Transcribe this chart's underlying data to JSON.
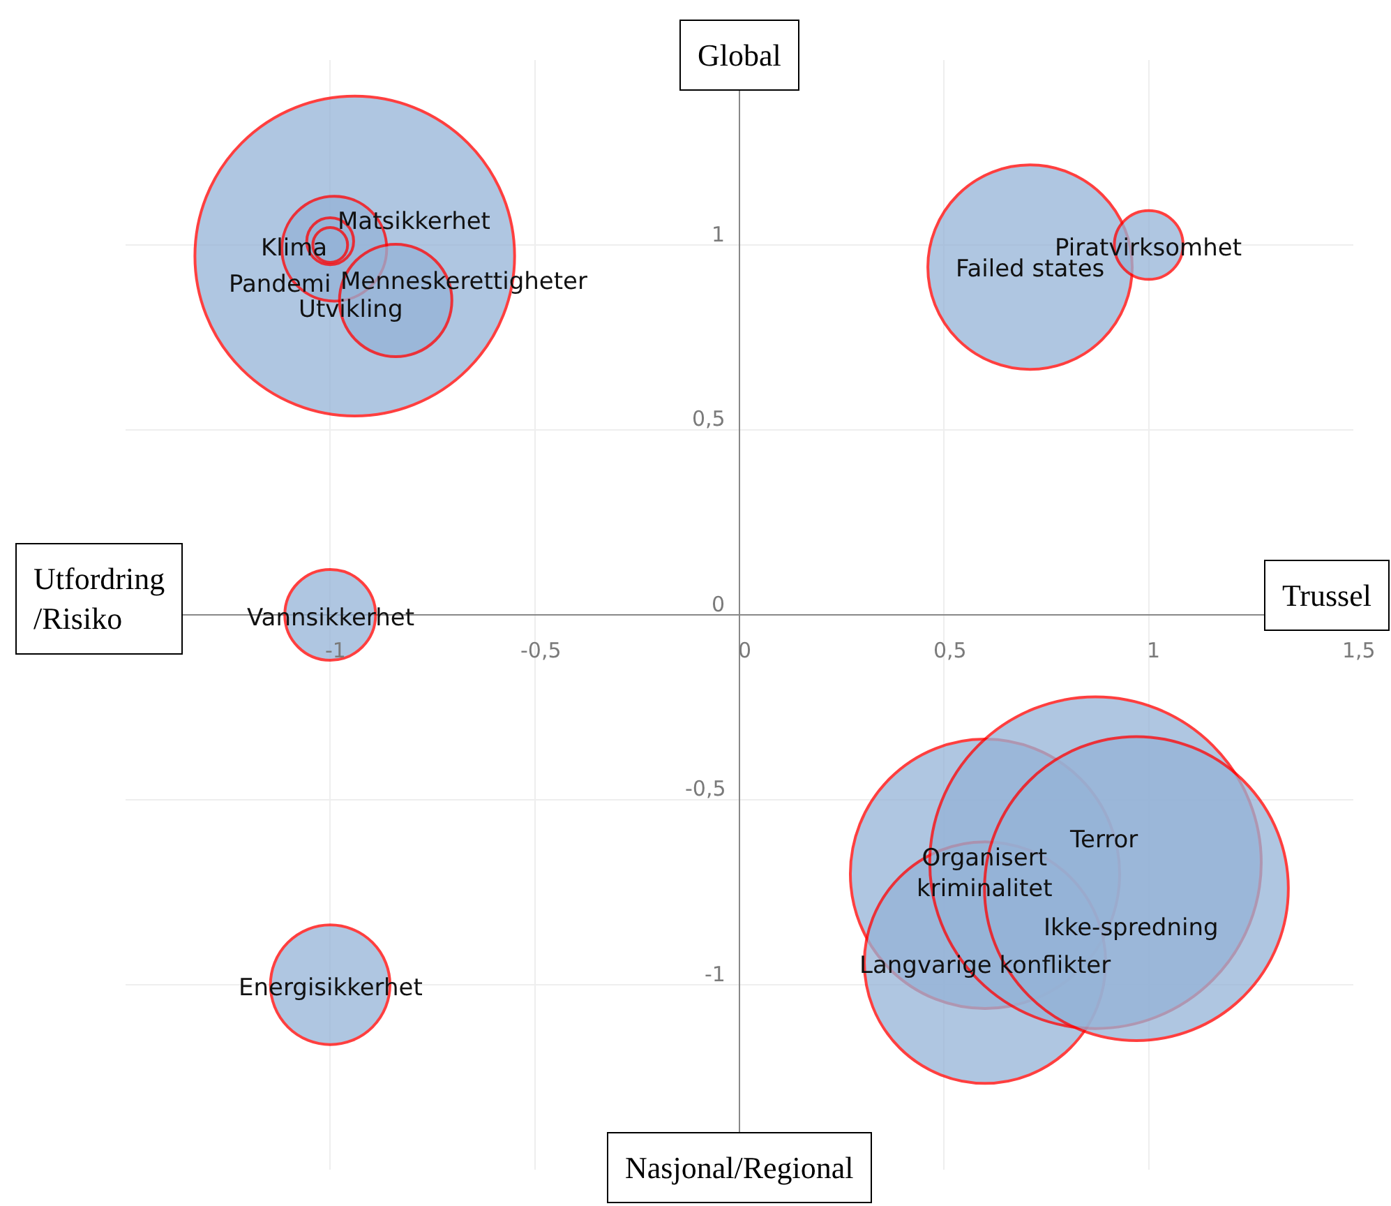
{
  "chart_data": {
    "type": "bubble",
    "series": [
      {
        "name": "Utvikling",
        "color": "#95b3d7",
        "x": [
          -0.94
        ],
        "values": [
          0.97
        ],
        "sizes": [
          0.93
        ]
      },
      {
        "name": "Pandemi",
        "color": "#95b3d7",
        "x": [
          -0.99
        ],
        "values": [
          0.99
        ],
        "sizes": [
          0.1
        ]
      },
      {
        "name": "Matsikkerhet",
        "color": "#95b3d7",
        "x": [
          -1
        ],
        "values": [
          1.01
        ],
        "sizes": [
          0.02
        ]
      },
      {
        "name": "Klima",
        "color": "#95b3d7",
        "x": [
          -1
        ],
        "values": [
          1
        ],
        "sizes": [
          0.011
        ]
      },
      {
        "name": "Menneskerettigheter",
        "color": "#95b3d7",
        "x": [
          -0.84
        ],
        "values": [
          0.85
        ],
        "sizes": [
          0.115
        ]
      },
      {
        "name": "Failed states",
        "color": "#95b3d7",
        "x": [
          0.71
        ],
        "values": [
          0.94
        ],
        "sizes": [
          0.38
        ]
      },
      {
        "name": "Piratvirksomhet",
        "color": "#95b3d7",
        "x": [
          1
        ],
        "values": [
          1
        ],
        "sizes": [
          0.043
        ]
      },
      {
        "name": "Vannsikkerhet",
        "color": "#95b3d7",
        "x": [
          -1
        ],
        "values": [
          0
        ],
        "sizes": [
          0.075
        ]
      },
      {
        "name": "Energisikkerhet",
        "color": "#95b3d7",
        "x": [
          -1
        ],
        "values": [
          -1
        ],
        "sizes": [
          0.13
        ]
      },
      {
        "name": "Organisert\nkriminalitet",
        "color": "#95b3d7",
        "x": [
          0.6
        ],
        "values": [
          -0.7
        ],
        "sizes": [
          0.66
        ]
      },
      {
        "name": "Langvarige konflikter",
        "color": "#95b3d7",
        "x": [
          0.6
        ],
        "values": [
          -0.94
        ],
        "sizes": [
          0.53
        ]
      },
      {
        "name": "Terror",
        "color": "#95b3d7",
        "x": [
          0.87
        ],
        "values": [
          -0.67
        ],
        "sizes": [
          1
        ]
      },
      {
        "name": "Ikke-spredning",
        "color": "#95b3d7",
        "x": [
          0.97
        ],
        "values": [
          -0.74
        ],
        "sizes": [
          0.84
        ]
      }
    ],
    "xlim": [
      -1.5,
      1.5
    ],
    "ylim": [
      -1.5,
      1.5
    ],
    "xticks": [
      -1,
      {
        "value": -0.5,
        "label": "-0,5"
      },
      0,
      {
        "value": 0.5,
        "label": "0,5"
      },
      1,
      {
        "value": 1.5,
        "label": "1,5"
      }
    ],
    "yticks": [
      -1,
      {
        "value": -0.5,
        "label": "-0,5"
      },
      0,
      {
        "value": 0.5,
        "label": "0,5"
      },
      1
    ],
    "grid": true,
    "annotations": [
      "Global",
      "Nasjonal/Regional",
      "Trussel",
      "Utfordring\n/Risiko"
    ]
  }
}
